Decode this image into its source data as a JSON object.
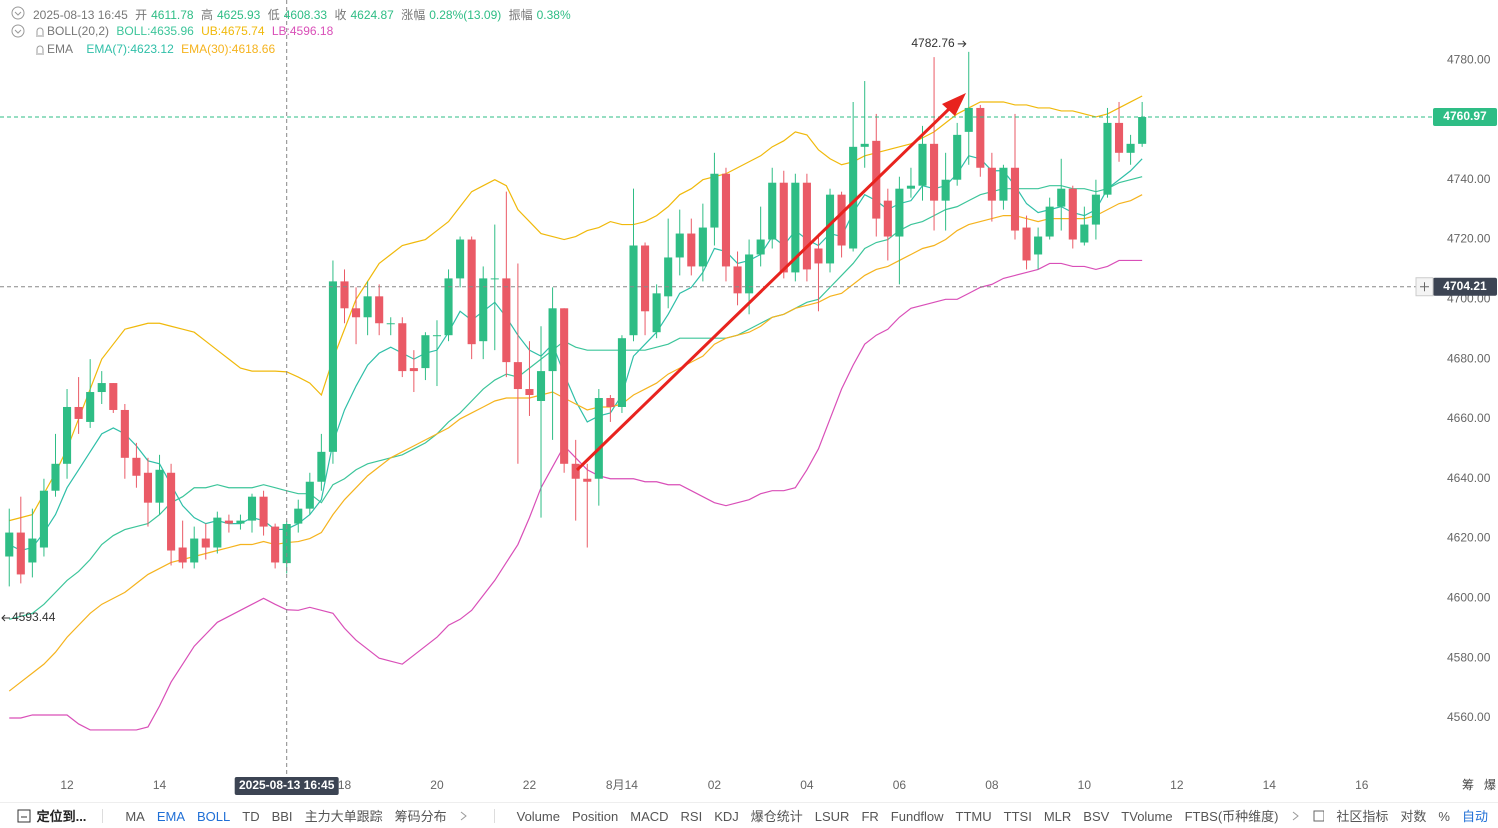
{
  "chart_data": {
    "type": "candlestick",
    "info": {
      "time": "2025-08-13 16:45",
      "open_label": "开",
      "high_label": "高",
      "low_label": "低",
      "close_label": "收",
      "change_label": "涨幅",
      "change": "0.28%(13.09)",
      "amplitude_label": "振幅",
      "amplitude": "0.38%",
      "boll_title": "BOLL(20,2)",
      "ema_title": "EMA"
    },
    "up_color": "#2ebd85",
    "down_color": "#ea5a66",
    "open": [
      4614,
      4622,
      4612,
      4617,
      4636,
      4645,
      4664,
      4659,
      4669,
      4672,
      4663,
      4647,
      4642,
      4632,
      4642,
      4617,
      4612,
      4620,
      4617,
      4626,
      4625,
      4626,
      4634,
      4624,
      4611.78,
      4625,
      4630,
      4639,
      4649,
      4706,
      4697,
      4694,
      4701,
      4692,
      4692,
      4677,
      4677,
      4688,
      4688,
      4707,
      4720,
      4686,
      4707,
      4707,
      4679,
      4670,
      4666,
      4676,
      4697,
      4645,
      4640,
      4640,
      4667,
      4664,
      4688,
      4718,
      4689,
      4701,
      4714,
      4722,
      4711,
      4724,
      4742,
      4711,
      4702,
      4715,
      4720,
      4739,
      4709,
      4739,
      4717,
      4712,
      4735,
      4717,
      4751,
      4753,
      4733,
      4721,
      4737,
      4738,
      4752,
      4733,
      4740,
      4756,
      4764,
      4744,
      4733,
      4744,
      4724,
      4715,
      4721,
      4731,
      4737,
      4719,
      4725,
      4735,
      4759,
      4749,
      4752
    ],
    "high": [
      4630,
      4634,
      4630,
      4640,
      4655,
      4670,
      4674,
      4680,
      4676,
      4672,
      4665,
      4652,
      4647,
      4648,
      4645,
      4626,
      4624,
      4625,
      4629,
      4628,
      4628,
      4635,
      4636,
      4625,
      4625.93,
      4633,
      4642,
      4655,
      4713,
      4710,
      4704,
      4706,
      4705,
      4694,
      4694,
      4683,
      4689,
      4693,
      4710,
      4721,
      4721,
      4711,
      4725,
      4736,
      4712,
      4686,
      4691,
      4704,
      4697,
      4653,
      4645,
      4670,
      4668,
      4688,
      4737,
      4719,
      4705,
      4727,
      4730,
      4727,
      4732,
      4749,
      4744,
      4716,
      4720,
      4731,
      4744,
      4743,
      4742,
      4742,
      4722,
      4737,
      4736,
      4766,
      4773,
      4762,
      4737,
      4741,
      4744,
      4758,
      4781,
      4749,
      4759,
      4782.76,
      4765,
      4749,
      4745,
      4762,
      4728,
      4724,
      4734,
      4747,
      4738,
      4731,
      4740,
      4764,
      4766,
      4755,
      4766
    ],
    "low": [
      4604,
      4605,
      4607,
      4614,
      4634,
      4640,
      4655,
      4657,
      4665,
      4662,
      4640,
      4637,
      4624,
      4628,
      4611,
      4610,
      4610,
      4613,
      4615,
      4622,
      4623,
      4622,
      4621,
      4610,
      4608.33,
      4622,
      4628,
      4636,
      4645,
      4692,
      4685,
      4688,
      4688,
      4688,
      4674,
      4669,
      4673,
      4671,
      4686,
      4704,
      4680,
      4680,
      4683,
      4674,
      4645,
      4661,
      4627,
      4653,
      4642,
      4626,
      4617,
      4631,
      4659,
      4662,
      4686,
      4688,
      4687,
      4697,
      4708,
      4708,
      4706,
      4718,
      4706,
      4698,
      4695,
      4711,
      4717,
      4707,
      4706,
      4706,
      4696,
      4709,
      4714,
      4716,
      4744,
      4721,
      4713,
      4705,
      4734,
      4733,
      4723,
      4723,
      4738,
      4745,
      4741,
      4726,
      4730,
      4720,
      4710,
      4710,
      4720,
      4723,
      4717,
      4718,
      4720,
      4734,
      4746,
      4745,
      4751
    ],
    "close": [
      4622,
      4608,
      4620,
      4636,
      4645,
      4664,
      4660,
      4669,
      4672,
      4663,
      4647,
      4641,
      4632,
      4643,
      4616,
      4612,
      4620,
      4617,
      4627,
      4625,
      4626,
      4634,
      4624,
      4612,
      4624.87,
      4630,
      4639,
      4649,
      4706,
      4697,
      4694,
      4701,
      4692,
      4692,
      4676,
      4676,
      4688,
      4688,
      4707,
      4720,
      4685,
      4707,
      4707,
      4679,
      4670,
      4668,
      4676,
      4697,
      4645,
      4640,
      4639,
      4667,
      4664,
      4687,
      4718,
      4696,
      4702,
      4714,
      4722,
      4711,
      4724,
      4742,
      4711,
      4702,
      4715,
      4720,
      4739,
      4709,
      4739,
      4710,
      4712,
      4735,
      4718,
      4751,
      4752,
      4727,
      4721,
      4737,
      4738,
      4752,
      4733,
      4740,
      4755,
      4764,
      4744,
      4733,
      4744,
      4723,
      4713,
      4721,
      4731,
      4737,
      4720,
      4725,
      4735,
      4759,
      4749,
      4752,
      4760.97
    ],
    "series": [
      {
        "name": "BOLL:4635.96",
        "color": "#3cc59a",
        "values": [
          4593,
          4594,
          4595,
          4598,
          4602,
          4606,
          4609,
          4613,
          4618,
          4621,
          4623,
          4624,
          4625,
          4628,
          4632,
          4634,
          4637,
          4637,
          4638,
          4637,
          4637,
          4637,
          4638,
          4637,
          4635.96,
          4635,
          4635,
          4632,
          4638,
          4640,
          4643,
          4645,
          4646,
          4647,
          4648,
          4650,
          4652,
          4655,
          4659,
          4662,
          4666,
          4670,
          4673,
          4675,
          4674,
          4677,
          4680,
          4683,
          4686,
          4684,
          4683,
          4683,
          4683,
          4683,
          4683,
          4683,
          4684,
          4685,
          4687,
          4687,
          4687,
          4687,
          4687,
          4688,
          4690,
          4692,
          4694,
          4695,
          4697,
          4699,
          4700,
          4704,
          4708,
          4712,
          4717,
          4719,
          4720,
          4723,
          4725,
          4726,
          4728,
          4730,
          4731,
          4733,
          4735,
          4736,
          4737,
          4737,
          4737,
          4737,
          4738,
          4738,
          4737,
          4737,
          4736,
          4737,
          4739,
          4740,
          4741
        ]
      },
      {
        "name": "UB:4675.74",
        "color": "#f0b90b",
        "values": [
          4626,
          4627,
          4628,
          4635,
          4642,
          4650,
          4660,
          4670,
          4680,
          4685,
          4690,
          4691,
          4692,
          4692,
          4691,
          4690,
          4689,
          4686,
          4683,
          4680,
          4677,
          4676,
          4676,
          4676,
          4675.74,
          4674,
          4672,
          4668,
          4680,
          4690,
          4700,
          4706,
          4712,
          4715,
          4718,
          4719,
          4720,
          4723,
          4726,
          4731,
          4736,
          4738,
          4740,
          4738,
          4730,
          4726,
          4722,
          4721,
          4720,
          4721,
          4723,
          4724,
          4726,
          4725,
          4725,
          4726,
          4728,
          4731,
          4735,
          4737,
          4740,
          4741,
          4742,
          4744,
          4746,
          4748,
          4751,
          4753,
          4756,
          4755,
          4750,
          4747,
          4745,
          4746,
          4748,
          4749,
          4750,
          4751,
          4752,
          4754,
          4756,
          4759,
          4762,
          4764,
          4766,
          4766,
          4766,
          4765,
          4765,
          4764,
          4764,
          4763,
          4763,
          4762,
          4761,
          4762,
          4764,
          4766,
          4768
        ]
      },
      {
        "name": "LB:4596.18",
        "color": "#d94fb8",
        "values": [
          4560,
          4560,
          4561,
          4561,
          4561,
          4561,
          4558,
          4556,
          4556,
          4556,
          4556,
          4556,
          4557,
          4564,
          4572,
          4578,
          4584,
          4588,
          4592,
          4594,
          4596,
          4598,
          4600,
          4598,
          4596.18,
          4596,
          4597,
          4596,
          4595,
          4590,
          4586,
          4583,
          4580,
          4579,
          4578,
          4581,
          4584,
          4587,
          4591,
          4593,
          4596,
          4601,
          4606,
          4612,
          4618,
          4627,
          4637,
          4644,
          4651,
          4647,
          4643,
          4641,
          4640,
          4640,
          4640,
          4639,
          4639,
          4638,
          4638,
          4636,
          4634,
          4632,
          4631,
          4632,
          4633,
          4635,
          4636,
          4636,
          4637,
          4643,
          4650,
          4660,
          4670,
          4678,
          4685,
          4688,
          4690,
          4694,
          4697,
          4698,
          4699,
          4700,
          4700,
          4702,
          4704,
          4705,
          4707,
          4708,
          4709,
          4710,
          4712,
          4712,
          4711,
          4711,
          4710,
          4711,
          4713,
          4713,
          4713
        ]
      },
      {
        "name": "EMA(7):4623.12",
        "color": "#2fbfa8",
        "values": [
          4618,
          4616,
          4617,
          4622,
          4628,
          4637,
          4643,
          4649,
          4655,
          4657,
          4655,
          4651,
          4646,
          4645,
          4638,
          4631,
          4627,
          4625,
          4626,
          4625,
          4625,
          4627,
          4626,
          4623,
          4623.12,
          4625,
          4628,
          4633,
          4652,
          4663,
          4671,
          4678,
          4682,
          4684,
          4682,
          4680,
          4682,
          4683,
          4689,
          4696,
          4693,
          4696,
          4699,
          4694,
          4688,
          4683,
          4681,
          4685,
          4675,
          4666,
          4659,
          4661,
          4662,
          4668,
          4681,
          4685,
          4689,
          4695,
          4702,
          4704,
          4709,
          4717,
          4716,
          4712,
          4713,
          4715,
          4721,
          4718,
          4723,
          4720,
          4718,
          4722,
          4721,
          4729,
          4735,
          4733,
          4730,
          4732,
          4733,
          4738,
          4737,
          4738,
          4742,
          4748,
          4747,
          4743,
          4743,
          4738,
          4732,
          4729,
          4730,
          4731,
          4729,
          4728,
          4730,
          4737,
          4740,
          4743,
          4747
        ]
      },
      {
        "name": "EMA(30):4618.66",
        "color": "#f5b31e",
        "values": [
          4569,
          4572,
          4575,
          4578,
          4582,
          4587,
          4591,
          4595,
          4598,
          4600,
          4602,
          4605,
          4608,
          4610,
          4612,
          4613,
          4614,
          4615,
          4616,
          4617,
          4618,
          4618,
          4619,
          4618,
          4618.66,
          4619,
          4620,
          4622,
          4628,
          4633,
          4637,
          4641,
          4644,
          4647,
          4649,
          4651,
          4653,
          4655,
          4657,
          4660,
          4662,
          4664,
          4666,
          4667,
          4667,
          4667,
          4668,
          4669,
          4667,
          4665,
          4663,
          4664,
          4664,
          4665,
          4668,
          4670,
          4672,
          4675,
          4677,
          4679,
          4681,
          4685,
          4687,
          4688,
          4689,
          4691,
          4694,
          4695,
          4697,
          4698,
          4699,
          4701,
          4702,
          4705,
          4708,
          4710,
          4711,
          4713,
          4715,
          4717,
          4718,
          4720,
          4723,
          4725,
          4726,
          4727,
          4728,
          4728,
          4727,
          4726,
          4727,
          4727,
          4727,
          4727,
          4728,
          4730,
          4732,
          4733,
          4735
        ]
      }
    ],
    "xlim": [
      -0.8,
      122.9
    ],
    "xticks": [
      {
        "value": 5,
        "label": "12"
      },
      {
        "value": 13,
        "label": "14"
      },
      {
        "value": 29,
        "label": "18"
      },
      {
        "value": 37,
        "label": "20"
      },
      {
        "value": 45,
        "label": "22"
      },
      {
        "value": 53,
        "label": "8月14"
      },
      {
        "value": 61,
        "label": "02"
      },
      {
        "value": 69,
        "label": "04"
      },
      {
        "value": 77,
        "label": "06"
      },
      {
        "value": 85,
        "label": "08"
      },
      {
        "value": 93,
        "label": "10"
      },
      {
        "value": 101,
        "label": "12"
      },
      {
        "value": 109,
        "label": "14"
      },
      {
        "value": 117,
        "label": "16"
      }
    ],
    "ylim": [
      4542.6,
      4800.1
    ],
    "yticks": [
      {
        "value": 4560,
        "label": "4560.00"
      },
      {
        "value": 4580,
        "label": "4580.00"
      },
      {
        "value": 4600,
        "label": "4600.00"
      },
      {
        "value": 4620,
        "label": "4620.00"
      },
      {
        "value": 4640,
        "label": "4640.00"
      },
      {
        "value": 4660,
        "label": "4660.00"
      },
      {
        "value": 4680,
        "label": "4680.00"
      },
      {
        "value": 4700,
        "label": "4700.00"
      },
      {
        "value": 4720,
        "label": "4720.00"
      },
      {
        "value": 4740,
        "label": "4740.00"
      },
      {
        "value": 4760,
        "label": "4760.00"
      },
      {
        "value": 4780,
        "label": "4780.00"
      }
    ],
    "crosshair": {
      "x": 24,
      "y": 4704.21
    },
    "min_marker": 4593.44,
    "axis_icons": [
      "筹",
      "爆"
    ],
    "toolbar": {
      "locate": "定位到...",
      "main": [
        "MA",
        "EMA",
        "BOLL",
        "TD",
        "BBI",
        "主力大单跟踪",
        "筹码分布"
      ],
      "sub": [
        "Volume",
        "Position",
        "MACD",
        "RSI",
        "KDJ",
        "爆仓统计",
        "LSUR",
        "FR",
        "Fundflow",
        "TTMU",
        "TTSI",
        "MLR",
        "BSV",
        "TVolume",
        "FTBS(币种维度)"
      ],
      "right": [
        "社区指标",
        "对数",
        "%",
        "自动"
      ]
    }
  }
}
